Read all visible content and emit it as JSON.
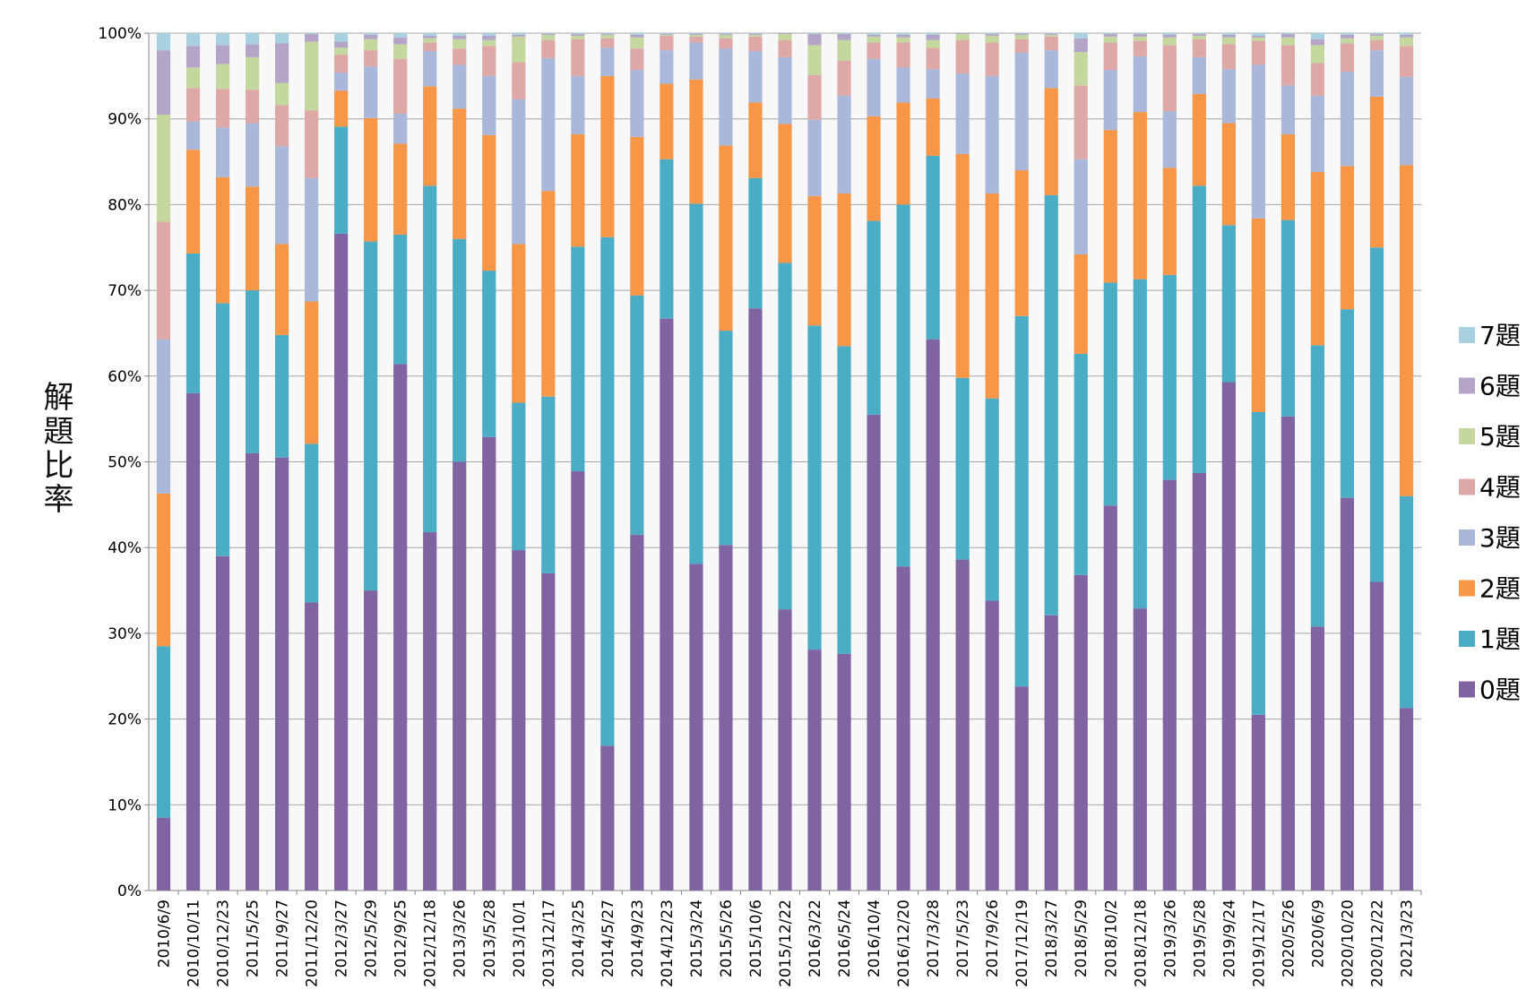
{
  "chart_data": {
    "type": "stacked_bar",
    "y_label": "解題比率",
    "categories": [
      "2010/6/9",
      "2010/10/11",
      "2010/12/23",
      "2011/5/25",
      "2011/9/27",
      "2011/12/20",
      "2012/3/27",
      "2012/5/29",
      "2012/9/25",
      "2012/12/18",
      "2013/3/26",
      "2013/5/28",
      "2013/10/1",
      "2013/12/17",
      "2014/3/25",
      "2014/5/27",
      "2014/9/23",
      "2014/12/23",
      "2015/3/24",
      "2015/5/26",
      "2015/10/6",
      "2015/12/22",
      "2016/3/22",
      "2016/5/24",
      "2016/10/4",
      "2016/12/20",
      "2017/3/28",
      "2017/5/23",
      "2017/9/26",
      "2017/12/19",
      "2018/3/27",
      "2018/5/29",
      "2018/10/2",
      "2018/12/18",
      "2019/3/26",
      "2019/5/28",
      "2019/9/24",
      "2019/12/17",
      "2020/5/26",
      "2020/6/9",
      "2020/10/20",
      "2020/12/22",
      "2021/3/23"
    ],
    "series": [
      {
        "name": "0題",
        "color": "#8064a2",
        "values": [
          8.5,
          58,
          39,
          51,
          50.5,
          33.6,
          76.6,
          35,
          61.4,
          41.8,
          50,
          52.9,
          39.7,
          37,
          48.9,
          16.9,
          41.5,
          66.7,
          38.1,
          40.3,
          67.9,
          32.8,
          28.1,
          27.6,
          55.5,
          37.8,
          64.3,
          38.6,
          33.8,
          23.8,
          32.1,
          36.8,
          44.9,
          32.9,
          47.9,
          48.7,
          59.3,
          20.5,
          55.3,
          30.8,
          45.8,
          36,
          21.3
        ]
      },
      {
        "name": "1題",
        "color": "#4bacc6",
        "values": [
          20,
          16.3,
          29.5,
          19,
          14.3,
          18.5,
          12.5,
          40.7,
          15.1,
          40.4,
          26,
          19.4,
          17.2,
          20.6,
          26.2,
          59.3,
          27.9,
          18.6,
          42,
          25,
          15.2,
          40.4,
          37.8,
          35.9,
          22.6,
          42.2,
          21.4,
          21.2,
          23.6,
          43.2,
          49,
          25.8,
          26,
          38.4,
          23.9,
          33.5,
          18.3,
          35.3,
          22.9,
          32.8,
          22,
          39,
          24.7
        ]
      },
      {
        "name": "2題",
        "color": "#f79646",
        "values": [
          17.8,
          12.1,
          14.7,
          12.1,
          10.6,
          16.6,
          4.2,
          14.4,
          10.6,
          11.6,
          15.2,
          15.8,
          18.5,
          24,
          13.1,
          18.8,
          18.5,
          8.8,
          14.5,
          21.6,
          8.8,
          16.2,
          15.1,
          17.8,
          12.2,
          11.9,
          6.7,
          26.1,
          23.9,
          17,
          12.5,
          11.6,
          17.8,
          19.5,
          12.5,
          10.7,
          11.9,
          22.6,
          10,
          20.2,
          16.7,
          17.6,
          38.6
        ]
      },
      {
        "name": "3題",
        "color": "#a9b8da",
        "values": [
          18,
          3.3,
          5.8,
          7.4,
          11.4,
          14.4,
          2.1,
          6,
          3.5,
          4.1,
          5.1,
          6.9,
          16.9,
          15.5,
          6.8,
          3.3,
          7.8,
          3.9,
          4.3,
          11.3,
          6,
          7.8,
          8.9,
          11.4,
          6.7,
          4.1,
          3.4,
          9.4,
          13.7,
          13.7,
          4.4,
          11.1,
          7,
          6.5,
          6.6,
          4.3,
          6.3,
          17.9,
          5.7,
          8.9,
          11,
          5.4,
          10.3
        ]
      },
      {
        "name": "4題",
        "color": "#dea8a7",
        "values": [
          13.7,
          3.9,
          4.5,
          3.9,
          4.8,
          7.9,
          2.1,
          1.9,
          6.4,
          1,
          1.9,
          3.5,
          4.3,
          2.1,
          4.3,
          1.1,
          2.5,
          1.7,
          0.7,
          1.2,
          1.7,
          2,
          5.2,
          4.1,
          1.9,
          2.9,
          2.5,
          3.9,
          3.9,
          1.6,
          1.6,
          8.6,
          3.2,
          1.8,
          7.7,
          2.1,
          2.9,
          2.8,
          4.7,
          3.8,
          3.3,
          1.2,
          3.6
        ]
      },
      {
        "name": "5題",
        "color": "#c4d79e",
        "values": [
          12.5,
          2.4,
          2.9,
          3.8,
          2.6,
          8,
          0.8,
          1.3,
          1.7,
          0.5,
          1.1,
          0.7,
          3,
          0.6,
          0.4,
          0.4,
          1.3,
          0.1,
          0.2,
          0.4,
          0.2,
          0.7,
          3.5,
          2.4,
          0.7,
          0.6,
          0.9,
          0.7,
          0.8,
          0.5,
          0.2,
          3.9,
          0.7,
          0.5,
          0.9,
          0.4,
          0.8,
          0.4,
          0.9,
          2.1,
          0.6,
          0.5,
          1
        ]
      },
      {
        "name": "6題",
        "color": "#b4a4c8",
        "values": [
          7.5,
          2.5,
          2.2,
          1.5,
          4.6,
          0.9,
          0.7,
          0.5,
          0.8,
          0.3,
          0.4,
          0.5,
          0.2,
          0.1,
          0.2,
          0.1,
          0.3,
          0.1,
          0.1,
          0.1,
          0.1,
          0.1,
          1.3,
          0.7,
          0.2,
          0.3,
          0.6,
          0.1,
          0.2,
          0.1,
          0.1,
          1.6,
          0.3,
          0.3,
          0.3,
          0.2,
          0.3,
          0.2,
          0.4,
          0.7,
          0.4,
          0.2,
          0.3
        ]
      },
      {
        "name": "7題",
        "color": "#a8d0e0",
        "values": [
          2,
          1.5,
          1.4,
          1.3,
          1.2,
          0.1,
          1,
          0.2,
          0.5,
          0.3,
          0.3,
          0.3,
          0.2,
          0.1,
          0.1,
          0.1,
          0.2,
          0.1,
          0.1,
          0.1,
          0.1,
          0,
          0.1,
          0.1,
          0.2,
          0.2,
          0.2,
          0,
          0.1,
          0.1,
          0.1,
          0.6,
          0.1,
          0.1,
          0.2,
          0.1,
          0.2,
          0.3,
          0.1,
          0.7,
          0.2,
          0.1,
          0.2
        ]
      }
    ],
    "ylim": [
      0,
      100
    ],
    "yticks": [
      {
        "value": 0,
        "label": "0%"
      },
      {
        "value": 10,
        "label": "10%"
      },
      {
        "value": 20,
        "label": "20%"
      },
      {
        "value": 30,
        "label": "30%"
      },
      {
        "value": 40,
        "label": "40%"
      },
      {
        "value": 50,
        "label": "50%"
      },
      {
        "value": 60,
        "label": "60%"
      },
      {
        "value": 70,
        "label": "70%"
      },
      {
        "value": 80,
        "label": "80%"
      },
      {
        "value": 90,
        "label": "90%"
      },
      {
        "value": 100,
        "label": "100%"
      }
    ],
    "grid": true,
    "legend": "right"
  }
}
